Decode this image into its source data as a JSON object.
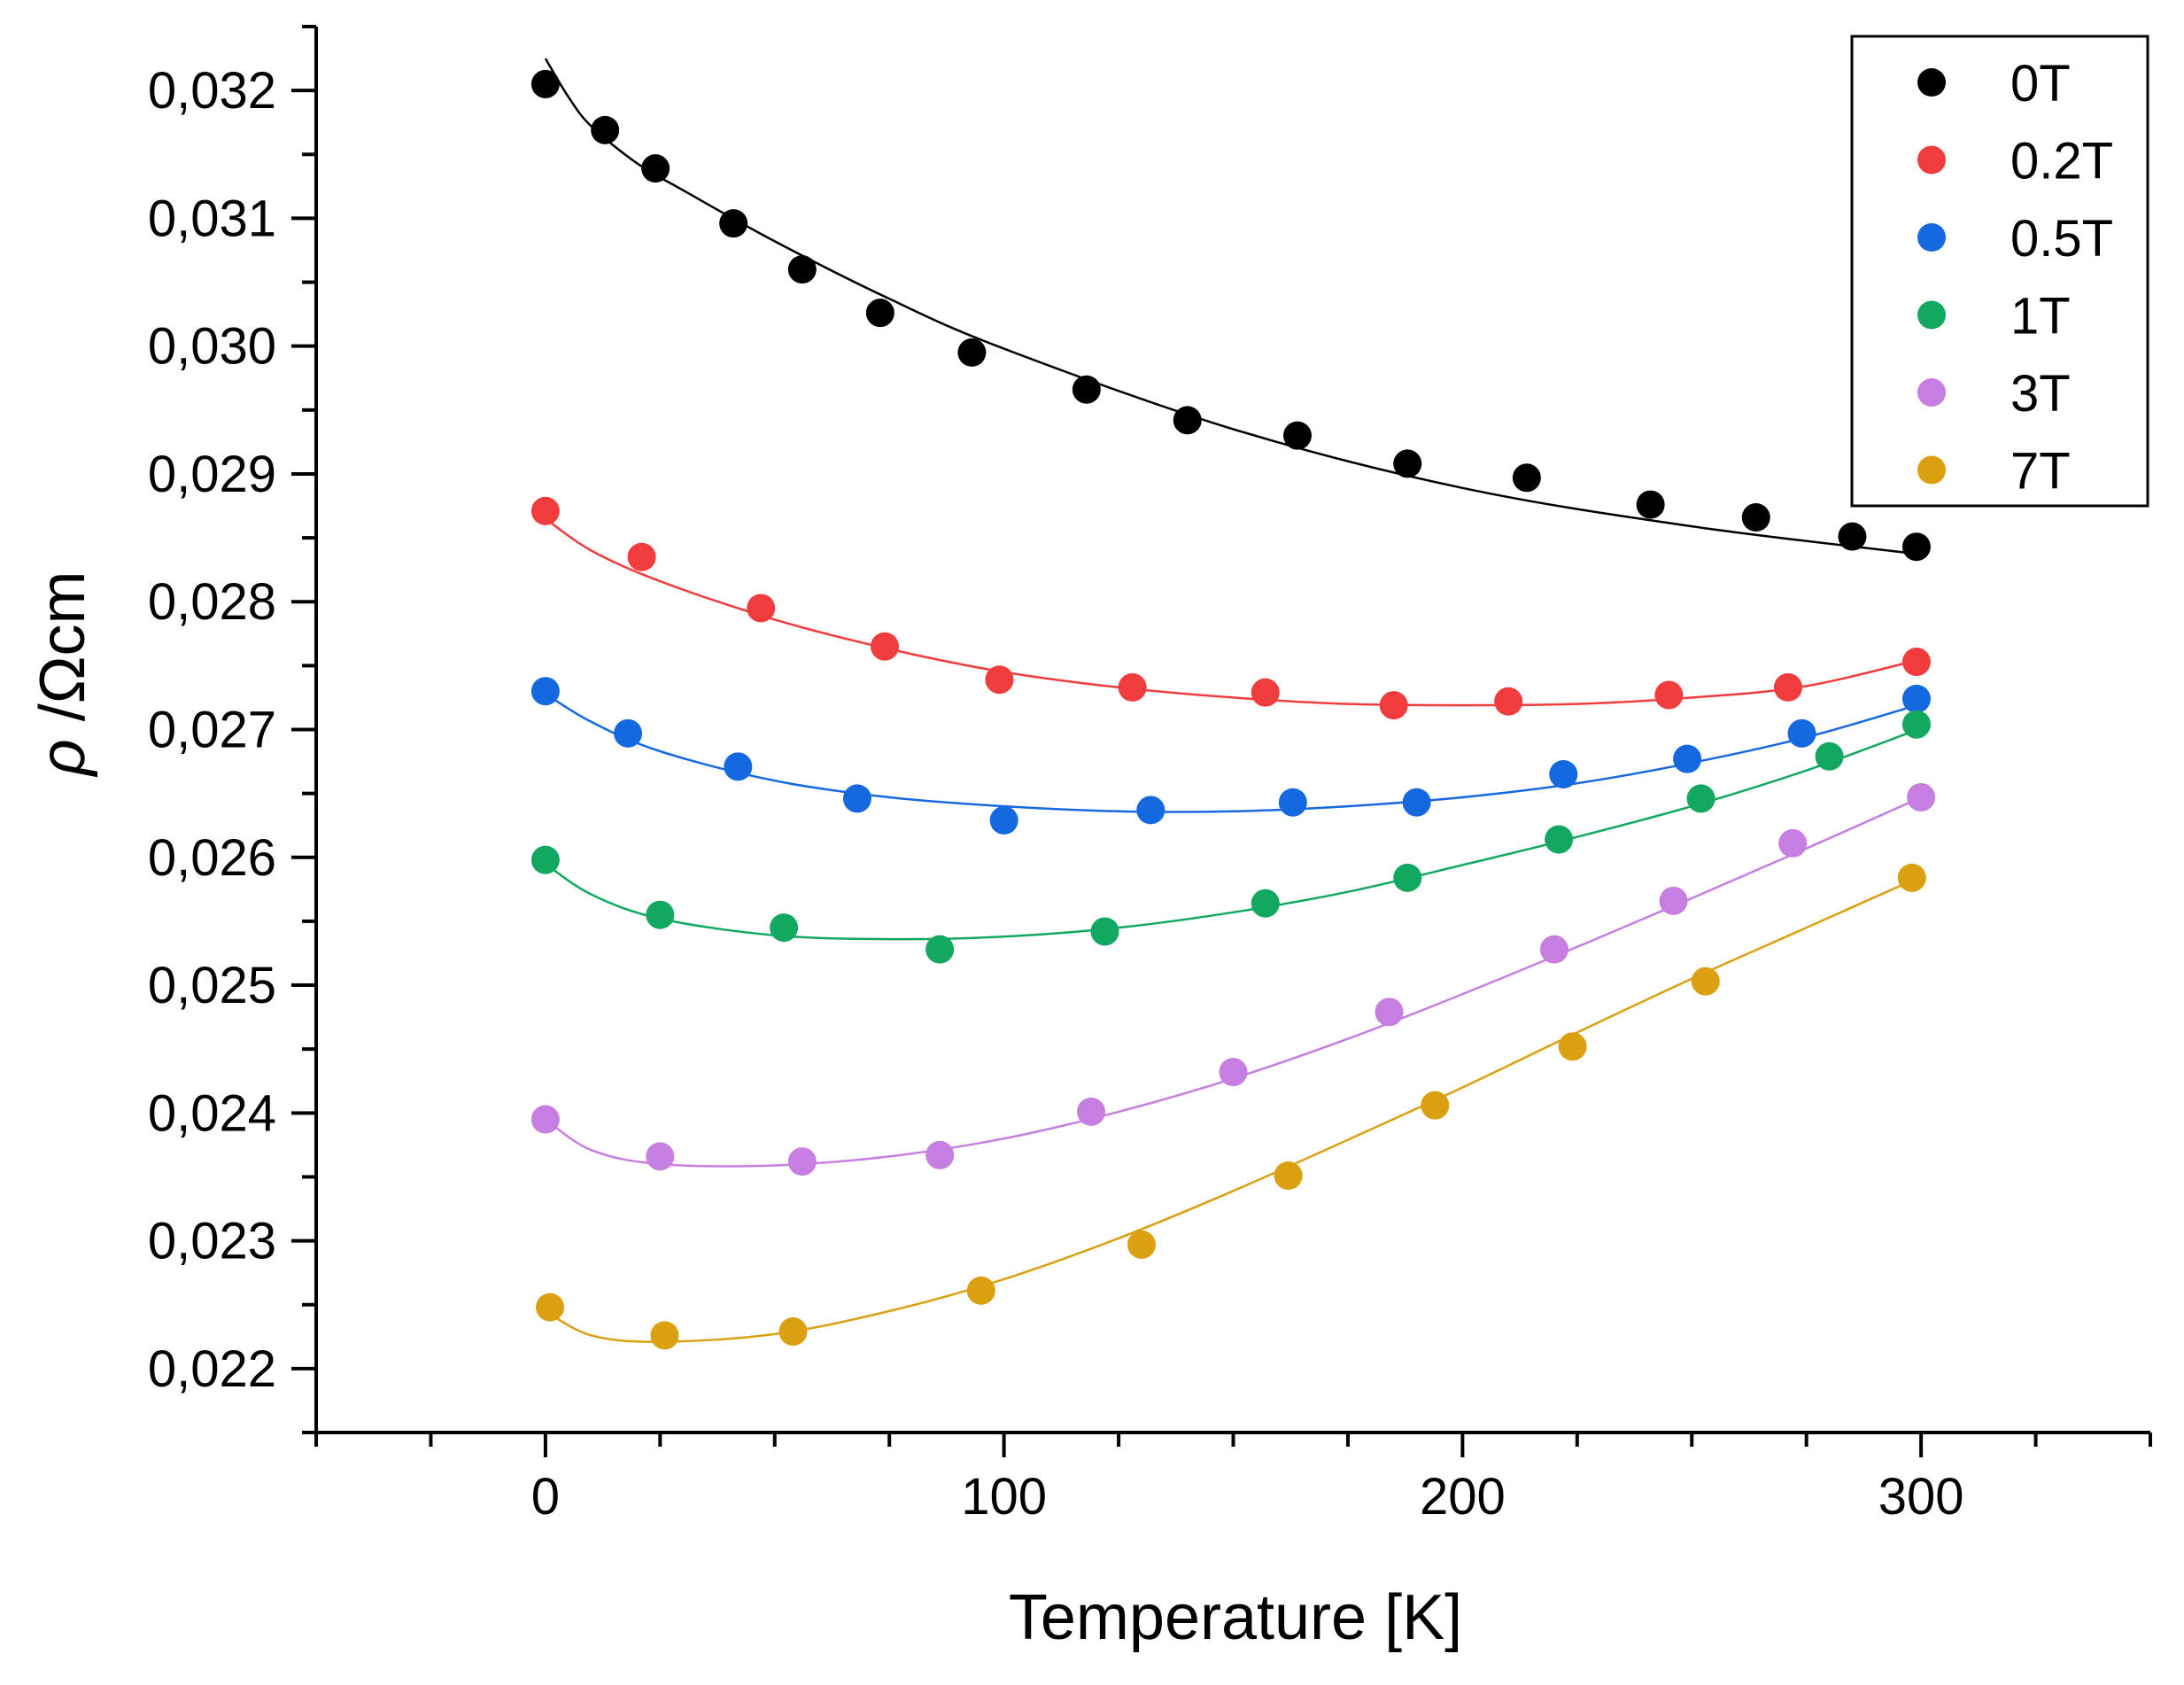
{
  "chart_data": {
    "type": "scatter",
    "xlabel": "Temperature [K]",
    "ylabel_symbol": "ρ",
    "ylabel_unit": " /Ωcm",
    "xlim": [
      -50,
      350
    ],
    "ylim": [
      0.0215,
      0.0325
    ],
    "xticks": [
      0,
      100,
      200,
      300
    ],
    "xtick_labels": [
      "0",
      "100",
      "200",
      "300"
    ],
    "yticks": [
      0.022,
      0.023,
      0.024,
      0.025,
      0.026,
      0.027,
      0.028,
      0.029,
      0.03,
      0.031,
      0.032
    ],
    "ytick_labels": [
      "0,022",
      "0,023",
      "0,024",
      "0,025",
      "0,026",
      "0,027",
      "0,028",
      "0,029",
      "0,030",
      "0,031",
      "0,032"
    ],
    "grid": false,
    "legend_position": "top-right",
    "series": [
      {
        "name": "0T",
        "color": "#000000",
        "x": [
          0,
          13,
          24,
          41,
          56,
          73,
          93,
          118,
          140,
          164,
          188,
          214,
          241,
          264,
          285,
          299
        ],
        "y": [
          0.03205,
          0.03169,
          0.03139,
          0.03096,
          0.0306,
          0.03026,
          0.02995,
          0.02966,
          0.02942,
          0.0293,
          0.02908,
          0.02897,
          0.02876,
          0.02866,
          0.02851,
          0.02843
        ],
        "fit_x": [
          0,
          5,
          10,
          20,
          30,
          50,
          75,
          100,
          150,
          200,
          250,
          300
        ],
        "fit_y": [
          0.03225,
          0.03195,
          0.03172,
          0.03143,
          0.03122,
          0.03082,
          0.03037,
          0.02998,
          0.02935,
          0.02889,
          0.02859,
          0.02837
        ]
      },
      {
        "name": "0.2T",
        "color": "#f03c3c",
        "x": [
          0,
          21,
          47,
          74,
          99,
          128,
          157,
          185,
          210,
          245,
          271,
          299
        ],
        "y": [
          0.02871,
          0.02835,
          0.02795,
          0.02765,
          0.02739,
          0.02733,
          0.02729,
          0.02719,
          0.02722,
          0.02727,
          0.02733,
          0.02753
        ],
        "fit_x": [
          0,
          10,
          25,
          50,
          75,
          100,
          125,
          150,
          175,
          200,
          225,
          250,
          275,
          300
        ],
        "fit_y": [
          0.02865,
          0.0284,
          0.02816,
          0.02786,
          0.02763,
          0.02745,
          0.02733,
          0.02725,
          0.0272,
          0.02719,
          0.0272,
          0.02725,
          0.02734,
          0.02755
        ]
      },
      {
        "name": "0.5T",
        "color": "#1469e0",
        "x": [
          0,
          18,
          42,
          68,
          100,
          132,
          163,
          190,
          222,
          249,
          274,
          299
        ],
        "y": [
          0.0273,
          0.02697,
          0.02671,
          0.02646,
          0.02629,
          0.02637,
          0.02643,
          0.02643,
          0.02665,
          0.02677,
          0.02697,
          0.02724
        ],
        "fit_x": [
          0,
          10,
          25,
          50,
          75,
          100,
          125,
          150,
          175,
          200,
          225,
          250,
          275,
          300
        ],
        "fit_y": [
          0.02728,
          0.02706,
          0.02683,
          0.0266,
          0.02647,
          0.0264,
          0.02636,
          0.02636,
          0.0264,
          0.02647,
          0.02658,
          0.02674,
          0.02694,
          0.0272
        ]
      },
      {
        "name": "1T",
        "color": "#12a860",
        "x": [
          0,
          25,
          52,
          86,
          122,
          157,
          188,
          221,
          252,
          280,
          299
        ],
        "y": [
          0.02598,
          0.02555,
          0.02545,
          0.02528,
          0.02542,
          0.02564,
          0.02584,
          0.02614,
          0.02646,
          0.02679,
          0.02704
        ],
        "fit_x": [
          0,
          10,
          25,
          50,
          75,
          100,
          125,
          150,
          175,
          200,
          225,
          250,
          275,
          300
        ],
        "fit_y": [
          0.02595,
          0.02571,
          0.02552,
          0.02539,
          0.02536,
          0.02538,
          0.02545,
          0.02557,
          0.02573,
          0.02594,
          0.02616,
          0.0264,
          0.02668,
          0.02701
        ]
      },
      {
        "name": "3T",
        "color": "#c67ee0",
        "x": [
          0,
          25,
          56,
          86,
          119,
          150,
          184,
          220,
          246,
          272,
          300
        ],
        "y": [
          0.02395,
          0.02366,
          0.02362,
          0.02367,
          0.02401,
          0.02432,
          0.02479,
          0.02528,
          0.02566,
          0.02611,
          0.02647
        ],
        "fit_x": [
          0,
          10,
          25,
          50,
          75,
          100,
          125,
          150,
          175,
          200,
          225,
          250,
          275,
          300
        ],
        "fit_y": [
          0.02395,
          0.02371,
          0.0236,
          0.02359,
          0.02366,
          0.0238,
          0.02401,
          0.02427,
          0.02458,
          0.02493,
          0.0253,
          0.02568,
          0.02607,
          0.02647
        ]
      },
      {
        "name": "7T",
        "color": "#daa010",
        "x": [
          1,
          26,
          54,
          95,
          130,
          162,
          194,
          224,
          253,
          298
        ],
        "y": [
          0.02248,
          0.02226,
          0.02229,
          0.02261,
          0.02297,
          0.02351,
          0.02406,
          0.02452,
          0.02503,
          0.02584
        ],
        "fit_x": [
          0,
          10,
          25,
          50,
          75,
          100,
          125,
          150,
          175,
          200,
          225,
          250,
          275,
          300
        ],
        "fit_y": [
          0.02245,
          0.02226,
          0.02221,
          0.02227,
          0.02245,
          0.0227,
          0.02302,
          0.02339,
          0.02379,
          0.0242,
          0.02463,
          0.02505,
          0.02545,
          0.02585
        ]
      }
    ]
  }
}
